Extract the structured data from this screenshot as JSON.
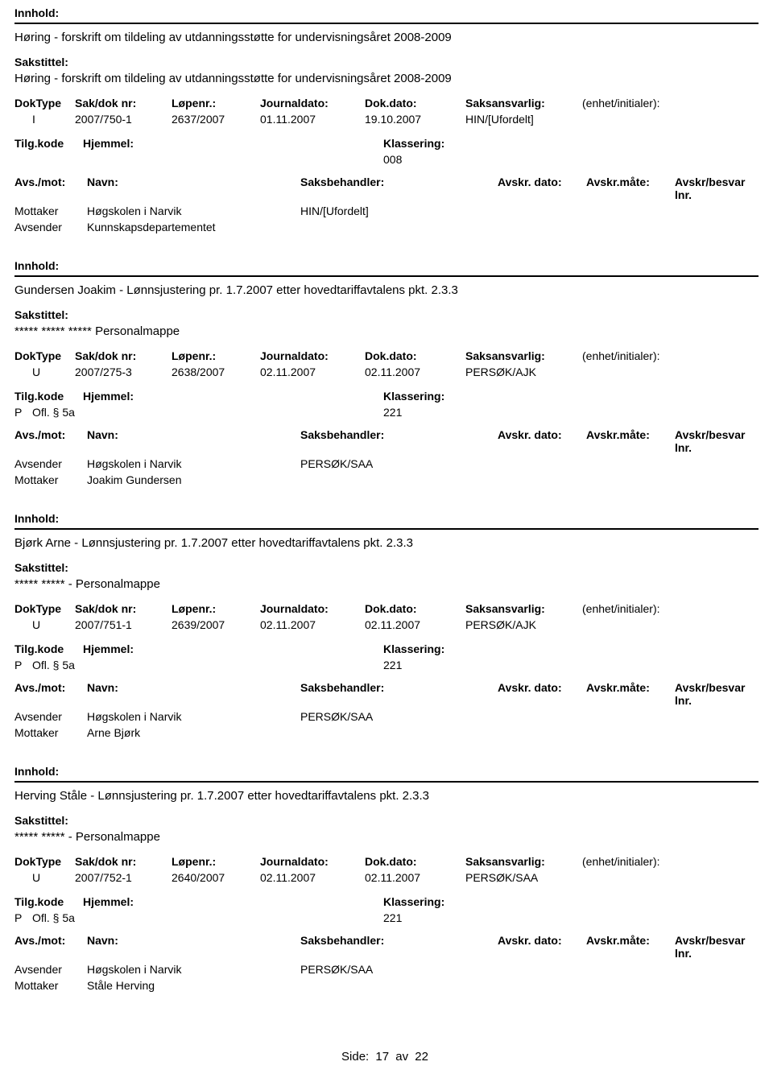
{
  "labels": {
    "innhold": "Innhold:",
    "sakstittel": "Sakstittel:",
    "doktype": "DokType",
    "sakdok": "Sak/dok nr:",
    "lopenr": "Løpenr.:",
    "journaldato": "Journaldato:",
    "dokdato": "Dok.dato:",
    "saksansvarlig": "Saksansvarlig:",
    "enhet": "(enhet/initialer):",
    "tilgkode": "Tilg.kode",
    "hjemmel": "Hjemmel:",
    "klassering": "Klassering:",
    "avsmot": "Avs./mot:",
    "navn": "Navn:",
    "saksbehandler": "Saksbehandler:",
    "avskrdato": "Avskr. dato:",
    "avskrmate": "Avskr.måte:",
    "avskrlnr": "Avskr/besvar lnr.",
    "avsender": "Avsender",
    "mottaker": "Mottaker",
    "side": "Side:",
    "av": "av"
  },
  "records": [
    {
      "innhold": "Høring - forskrift om tildeling av utdanningsstøtte for undervisningsåret 2008-2009",
      "sakstittel": "Høring - forskrift om tildeling av utdanningsstøtte for undervisningsåret 2008-2009",
      "doktype": "I",
      "sakdok": "2007/750-1",
      "lopenr": "2637/2007",
      "journaldato": "01.11.2007",
      "dokdato": "19.10.2007",
      "saksansvarlig": "HIN/[Ufordelt]",
      "tilgkode": "",
      "hjemmel": "",
      "klassering": "008",
      "parties": [
        {
          "role": "Mottaker",
          "name": "Høgskolen i Narvik",
          "saksbeh": "HIN/[Ufordelt]"
        },
        {
          "role": "Avsender",
          "name": "Kunnskapsdepartementet",
          "saksbeh": ""
        }
      ]
    },
    {
      "innhold": "Gundersen Joakim - Lønnsjustering pr. 1.7.2007 etter hovedtariffavtalens pkt. 2.3.3",
      "sakstittel": "***** ***** ***** Personalmappe",
      "doktype": "U",
      "sakdok": "2007/275-3",
      "lopenr": "2638/2007",
      "journaldato": "02.11.2007",
      "dokdato": "02.11.2007",
      "saksansvarlig": "PERSØK/AJK",
      "tilgkode": "P",
      "hjemmel": "Ofl. § 5a",
      "klassering": "221",
      "parties": [
        {
          "role": "Avsender",
          "name": "Høgskolen i Narvik",
          "saksbeh": "PERSØK/SAA"
        },
        {
          "role": "Mottaker",
          "name": "Joakim Gundersen",
          "saksbeh": ""
        }
      ]
    },
    {
      "innhold": "Bjørk Arne - Lønnsjustering pr. 1.7.2007 etter hovedtariffavtalens pkt. 2.3.3",
      "sakstittel": "***** ***** - Personalmappe",
      "doktype": "U",
      "sakdok": "2007/751-1",
      "lopenr": "2639/2007",
      "journaldato": "02.11.2007",
      "dokdato": "02.11.2007",
      "saksansvarlig": "PERSØK/AJK",
      "tilgkode": "P",
      "hjemmel": "Ofl. § 5a",
      "klassering": "221",
      "parties": [
        {
          "role": "Avsender",
          "name": "Høgskolen i Narvik",
          "saksbeh": "PERSØK/SAA"
        },
        {
          "role": "Mottaker",
          "name": "Arne Bjørk",
          "saksbeh": ""
        }
      ]
    },
    {
      "innhold": "Herving Ståle - Lønnsjustering pr. 1.7.2007 etter hovedtariffavtalens pkt. 2.3.3",
      "sakstittel": "***** ***** - Personalmappe",
      "doktype": "U",
      "sakdok": "2007/752-1",
      "lopenr": "2640/2007",
      "journaldato": "02.11.2007",
      "dokdato": "02.11.2007",
      "saksansvarlig": "PERSØK/SAA",
      "tilgkode": "P",
      "hjemmel": "Ofl. § 5a",
      "klassering": "221",
      "parties": [
        {
          "role": "Avsender",
          "name": "Høgskolen i Narvik",
          "saksbeh": "PERSØK/SAA"
        },
        {
          "role": "Mottaker",
          "name": "Ståle Herving",
          "saksbeh": ""
        }
      ]
    }
  ],
  "page": {
    "current": "17",
    "total": "22"
  }
}
